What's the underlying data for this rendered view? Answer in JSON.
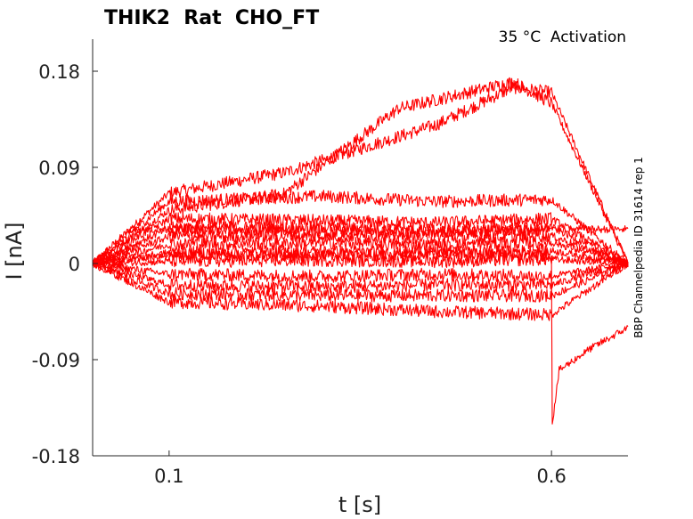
{
  "chart_data": {
    "type": "line",
    "title": "THIK2  Rat  CHO_FT",
    "subtitle": "35 °C  Activation",
    "xlabel": "t [s]",
    "ylabel": "I [nA]",
    "side_label": "BBP Channelpedia ID 31614 rep 1",
    "xlim": [
      0.0,
      0.7
    ],
    "ylim": [
      -0.18,
      0.21
    ],
    "x_ticks": [
      0.1,
      0.6
    ],
    "x_tick_labels": [
      "0.1",
      "0.6"
    ],
    "y_ticks": [
      0.18,
      0.09,
      0,
      -0.09,
      -0.18
    ],
    "y_tick_labels": [
      "0.18",
      "0.09",
      "0",
      "-0.09",
      "-0.18"
    ],
    "grid": false,
    "color": "#ff0000",
    "stimulus_window": [
      0.1,
      0.6
    ],
    "series": [
      {
        "x": [
          0.0,
          0.1,
          0.25,
          0.45,
          0.55,
          0.6,
          0.7
        ],
        "y": [
          0.0,
          0.066,
          0.085,
          0.13,
          0.165,
          0.16,
          0.0
        ]
      },
      {
        "x": [
          0.0,
          0.1,
          0.25,
          0.4,
          0.55,
          0.6,
          0.7
        ],
        "y": [
          0.0,
          0.05,
          0.065,
          0.145,
          0.17,
          0.15,
          0.0
        ]
      },
      {
        "x": [
          0.0,
          0.1,
          0.3,
          0.45,
          0.6,
          0.7
        ],
        "y": [
          0.0,
          0.058,
          0.063,
          0.058,
          0.06,
          0.0
        ]
      },
      {
        "x": [
          0.0,
          0.1,
          0.3,
          0.45,
          0.6,
          0.7
        ],
        "y": [
          0.0,
          0.042,
          0.04,
          0.038,
          0.042,
          0.0
        ]
      },
      {
        "x": [
          0.0,
          0.1,
          0.3,
          0.45,
          0.6,
          0.7
        ],
        "y": [
          0.0,
          0.033,
          0.034,
          0.03,
          0.034,
          0.0
        ]
      },
      {
        "x": [
          0.0,
          0.1,
          0.3,
          0.45,
          0.6,
          0.7
        ],
        "y": [
          0.0,
          0.025,
          0.026,
          0.024,
          0.026,
          0.0
        ]
      },
      {
        "x": [
          0.0,
          0.1,
          0.3,
          0.45,
          0.6,
          0.7
        ],
        "y": [
          0.0,
          0.018,
          0.019,
          0.017,
          0.02,
          0.0
        ]
      },
      {
        "x": [
          0.0,
          0.1,
          0.3,
          0.45,
          0.6,
          0.7
        ],
        "y": [
          0.0,
          0.01,
          0.011,
          0.01,
          0.012,
          0.0
        ]
      },
      {
        "x": [
          0.0,
          0.1,
          0.3,
          0.45,
          0.6,
          0.7
        ],
        "y": [
          0.0,
          0.002,
          0.003,
          0.002,
          0.004,
          0.0
        ]
      },
      {
        "x": [
          0.0,
          0.1,
          0.3,
          0.45,
          0.6,
          0.7
        ],
        "y": [
          0.0,
          -0.01,
          -0.012,
          -0.01,
          -0.012,
          0.0
        ]
      },
      {
        "x": [
          0.0,
          0.1,
          0.3,
          0.45,
          0.6,
          0.7
        ],
        "y": [
          0.0,
          -0.02,
          -0.022,
          -0.02,
          -0.02,
          0.0
        ]
      },
      {
        "x": [
          0.0,
          0.1,
          0.3,
          0.45,
          0.6,
          0.7
        ],
        "y": [
          0.0,
          -0.028,
          -0.03,
          -0.03,
          -0.03,
          0.0
        ]
      },
      {
        "x": [
          0.0,
          0.1,
          0.3,
          0.45,
          0.6,
          0.7
        ],
        "y": [
          0.0,
          -0.036,
          -0.04,
          -0.045,
          -0.048,
          0.0
        ]
      },
      {
        "x": [
          0.0,
          0.04,
          0.05,
          0.1,
          0.3,
          0.45,
          0.6,
          0.7
        ],
        "y": [
          0.0,
          0.0,
          0.032,
          0.032,
          0.03,
          0.03,
          0.032,
          0.032
        ]
      },
      {
        "x": [
          0.0,
          0.1,
          0.6,
          0.601,
          0.61,
          0.65,
          0.7
        ],
        "y": [
          0.0,
          0.008,
          0.008,
          -0.15,
          -0.1,
          -0.08,
          -0.06
        ]
      }
    ]
  }
}
